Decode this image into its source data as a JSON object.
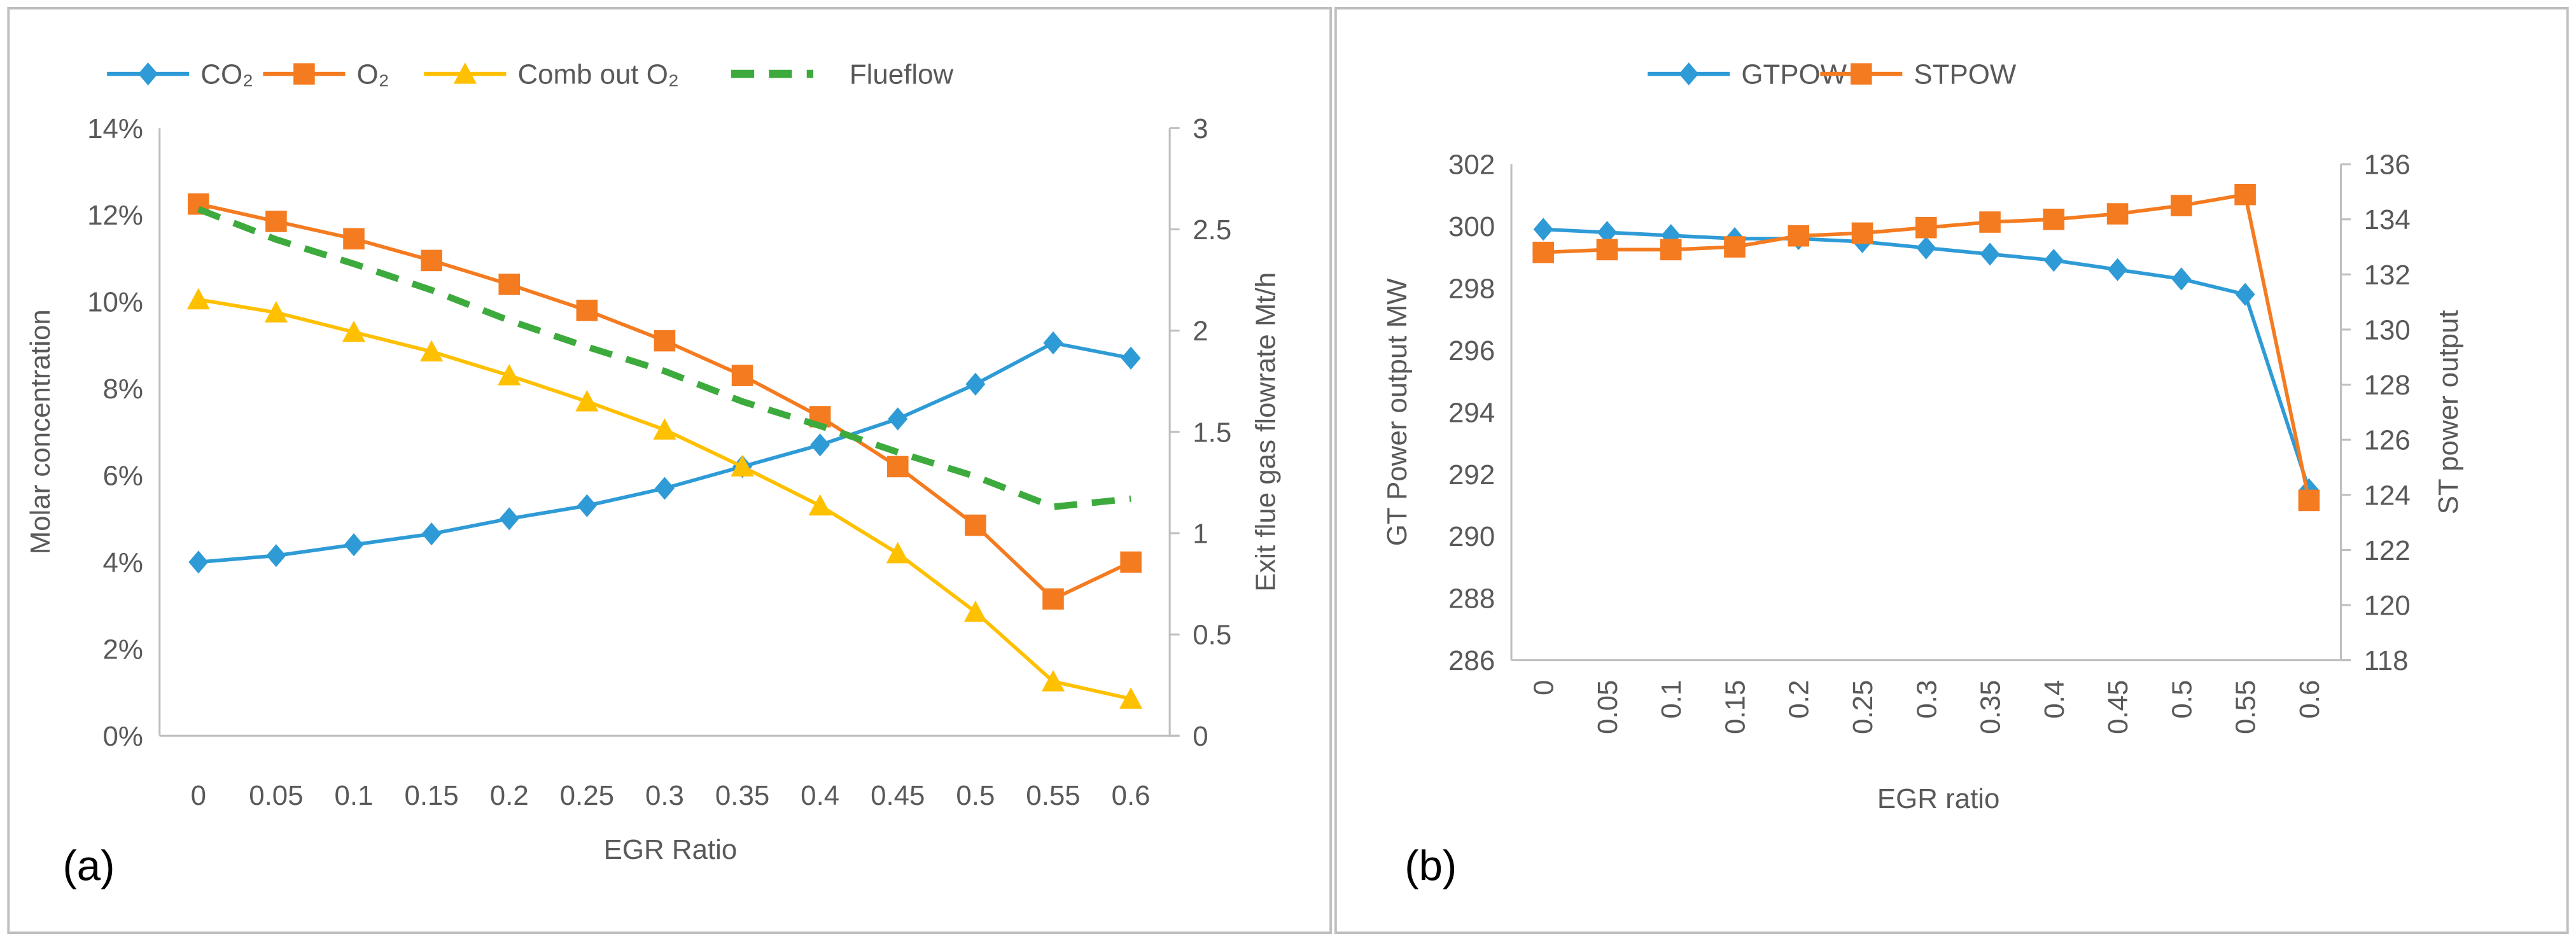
{
  "chart_data": [
    {
      "type": "line",
      "panel_label": "(a)",
      "xlabel": "EGR Ratio",
      "ylabel": "Molar concentration",
      "y2label": "Exit flue gas flowrate Mt/h",
      "categories": [
        "0",
        "0.05",
        "0.1",
        "0.15",
        "0.2",
        "0.25",
        "0.3",
        "0.35",
        "0.4",
        "0.45",
        "0.5",
        "0.55",
        "0.6"
      ],
      "ylim": [
        0,
        14
      ],
      "yticks": [
        "0%",
        "2%",
        "4%",
        "6%",
        "8%",
        "10%",
        "12%",
        "14%"
      ],
      "y2lim": [
        0,
        3
      ],
      "y2ticks": [
        "0",
        "0.5",
        "1",
        "1.5",
        "2",
        "2.5",
        "3"
      ],
      "legend_position": "top",
      "grid": false,
      "series": [
        {
          "name": "CO₂",
          "axis": "left",
          "unit": "%",
          "marker": "diamond",
          "color": "#2E9BD6",
          "dashed": false,
          "values": [
            4.0,
            4.15,
            4.4,
            4.65,
            5.0,
            5.3,
            5.7,
            6.2,
            6.7,
            7.3,
            8.1,
            9.05,
            8.7
          ]
        },
        {
          "name": "O₂",
          "axis": "left",
          "unit": "%",
          "marker": "square",
          "color": "#F47B20",
          "dashed": false,
          "values": [
            12.25,
            11.85,
            11.45,
            10.95,
            10.4,
            9.8,
            9.1,
            8.3,
            7.35,
            6.2,
            4.85,
            3.15,
            4.0
          ]
        },
        {
          "name": "Comb out O₂",
          "axis": "left",
          "unit": "%",
          "marker": "triangle",
          "color": "#FFC000",
          "dashed": false,
          "values": [
            10.05,
            9.75,
            9.3,
            8.85,
            8.3,
            7.7,
            7.05,
            6.2,
            5.3,
            4.2,
            2.85,
            1.25,
            0.85
          ]
        },
        {
          "name": "Flueflow",
          "axis": "right",
          "unit": "Mt/h",
          "marker": "none",
          "color": "#3DAA3D",
          "dashed": true,
          "values": [
            2.6,
            2.45,
            2.33,
            2.2,
            2.05,
            1.92,
            1.8,
            1.65,
            1.53,
            1.4,
            1.28,
            1.13,
            1.17
          ]
        }
      ]
    },
    {
      "type": "line",
      "panel_label": "(b)",
      "xlabel": "EGR ratio",
      "ylabel": "GT Power output MW",
      "y2label": "ST power output",
      "categories": [
        "0",
        "0.05",
        "0.1",
        "0.15",
        "0.2",
        "0.25",
        "0.3",
        "0.35",
        "0.4",
        "0.45",
        "0.5",
        "0.55",
        "0.6"
      ],
      "ylim": [
        286,
        302
      ],
      "yticks": [
        "286",
        "288",
        "290",
        "292",
        "294",
        "296",
        "298",
        "300",
        "302"
      ],
      "y2lim": [
        118,
        136
      ],
      "y2ticks": [
        "118",
        "120",
        "122",
        "124",
        "126",
        "128",
        "130",
        "132",
        "134",
        "136"
      ],
      "legend_position": "top",
      "grid": false,
      "series": [
        {
          "name": "GTPOW",
          "axis": "left",
          "marker": "diamond",
          "color": "#2E9BD6",
          "dashed": false,
          "values": [
            299.9,
            299.8,
            299.7,
            299.6,
            299.6,
            299.5,
            299.3,
            299.1,
            298.9,
            298.6,
            298.3,
            297.8,
            291.5
          ]
        },
        {
          "name": "STPOW",
          "axis": "right",
          "marker": "square",
          "color": "#F47B20",
          "dashed": false,
          "values": [
            132.8,
            132.9,
            132.9,
            133.0,
            133.4,
            133.5,
            133.7,
            133.9,
            134.0,
            134.2,
            134.5,
            134.9,
            123.8
          ]
        }
      ]
    }
  ]
}
